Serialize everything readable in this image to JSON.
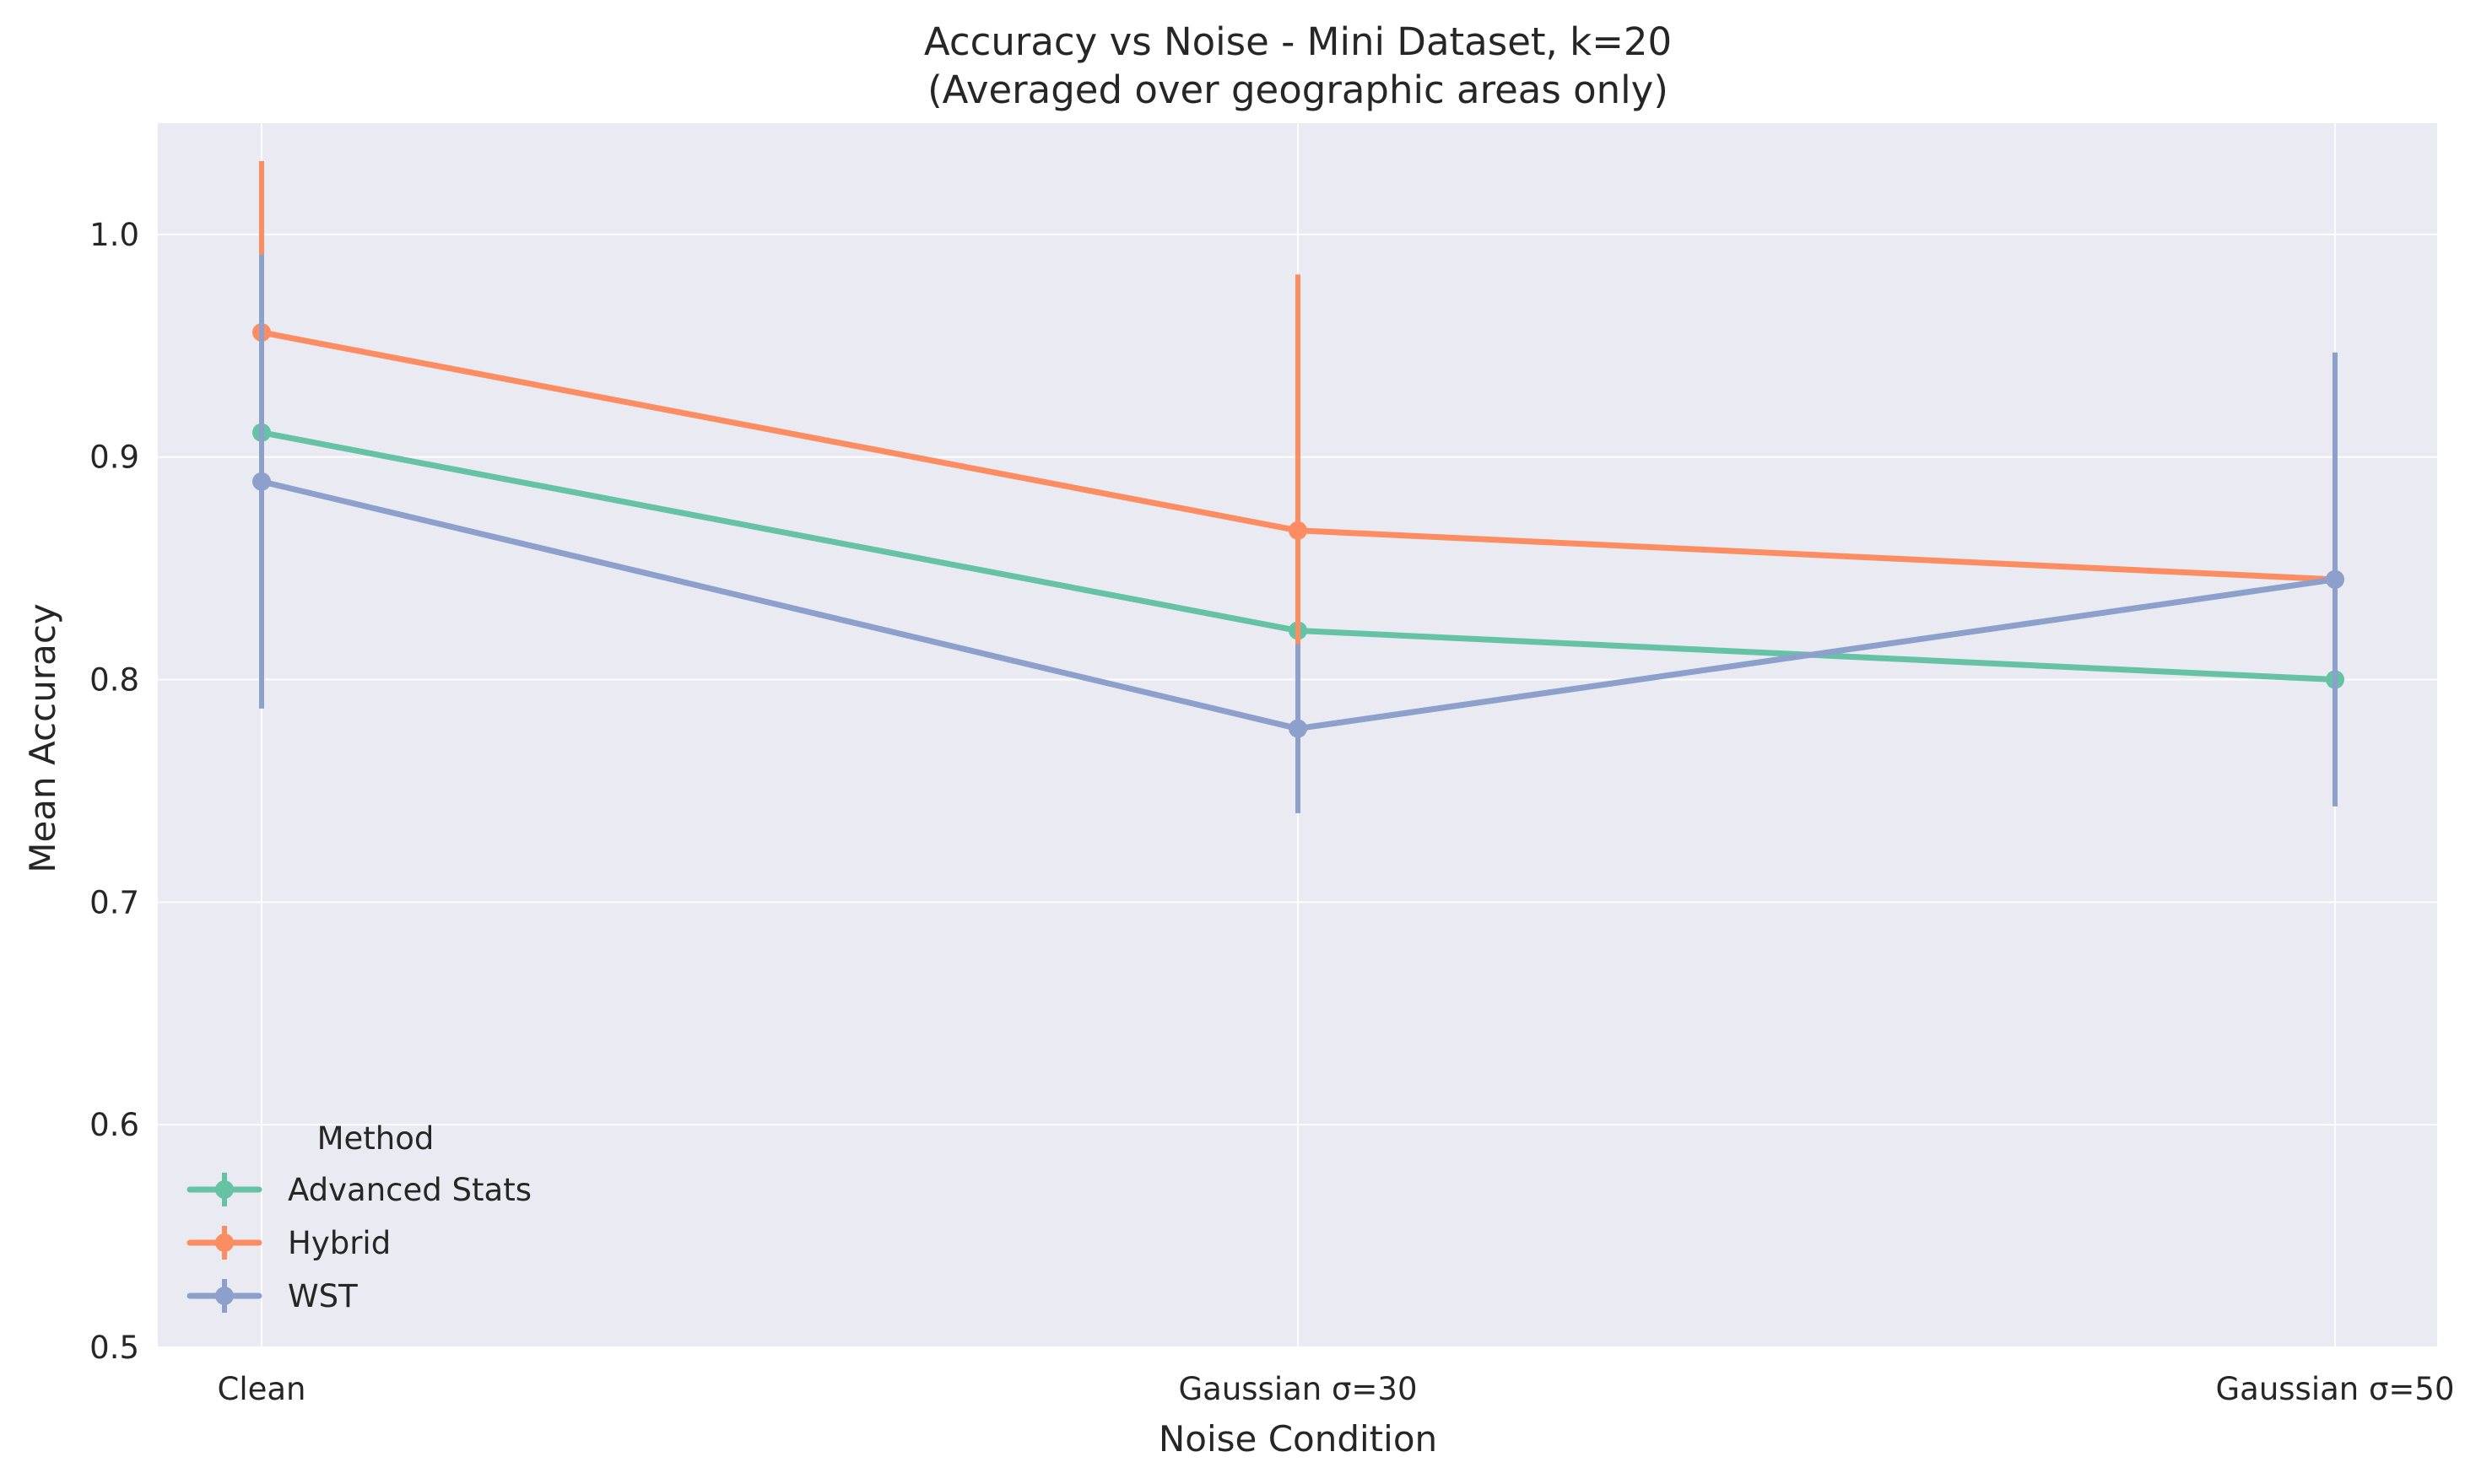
{
  "chart_data": {
    "type": "line",
    "title": "Accuracy vs Noise - Mini Dataset, k=20",
    "subtitle": "(Averaged over geographic areas only)",
    "xlabel": "Noise Condition",
    "ylabel": "Mean Accuracy",
    "categories": [
      "Clean",
      "Gaussian σ=30",
      "Gaussian σ=50"
    ],
    "ylim": [
      0.5,
      1.05
    ],
    "yticks": [
      "0.5",
      "0.6",
      "0.7",
      "0.8",
      "0.9",
      "1.0"
    ],
    "grid": true,
    "legend": {
      "title": "Method",
      "placement": "lower-left"
    },
    "series": [
      {
        "name": "Advanced Stats",
        "color": "#66c2a5",
        "values": [
          0.911,
          0.822,
          0.8
        ],
        "error": [
          0.0,
          0.0,
          0.0
        ]
      },
      {
        "name": "Hybrid",
        "color": "#fc8d62",
        "values": [
          0.956,
          0.867,
          0.845
        ],
        "error": [
          0.077,
          0.115,
          0.0
        ]
      },
      {
        "name": "WST",
        "color": "#8da0cb",
        "values": [
          0.889,
          0.778,
          0.845
        ],
        "error": [
          0.102,
          0.038,
          0.102
        ]
      }
    ],
    "background_color": "#eaeaf2",
    "grid_color": "#ffffff"
  }
}
